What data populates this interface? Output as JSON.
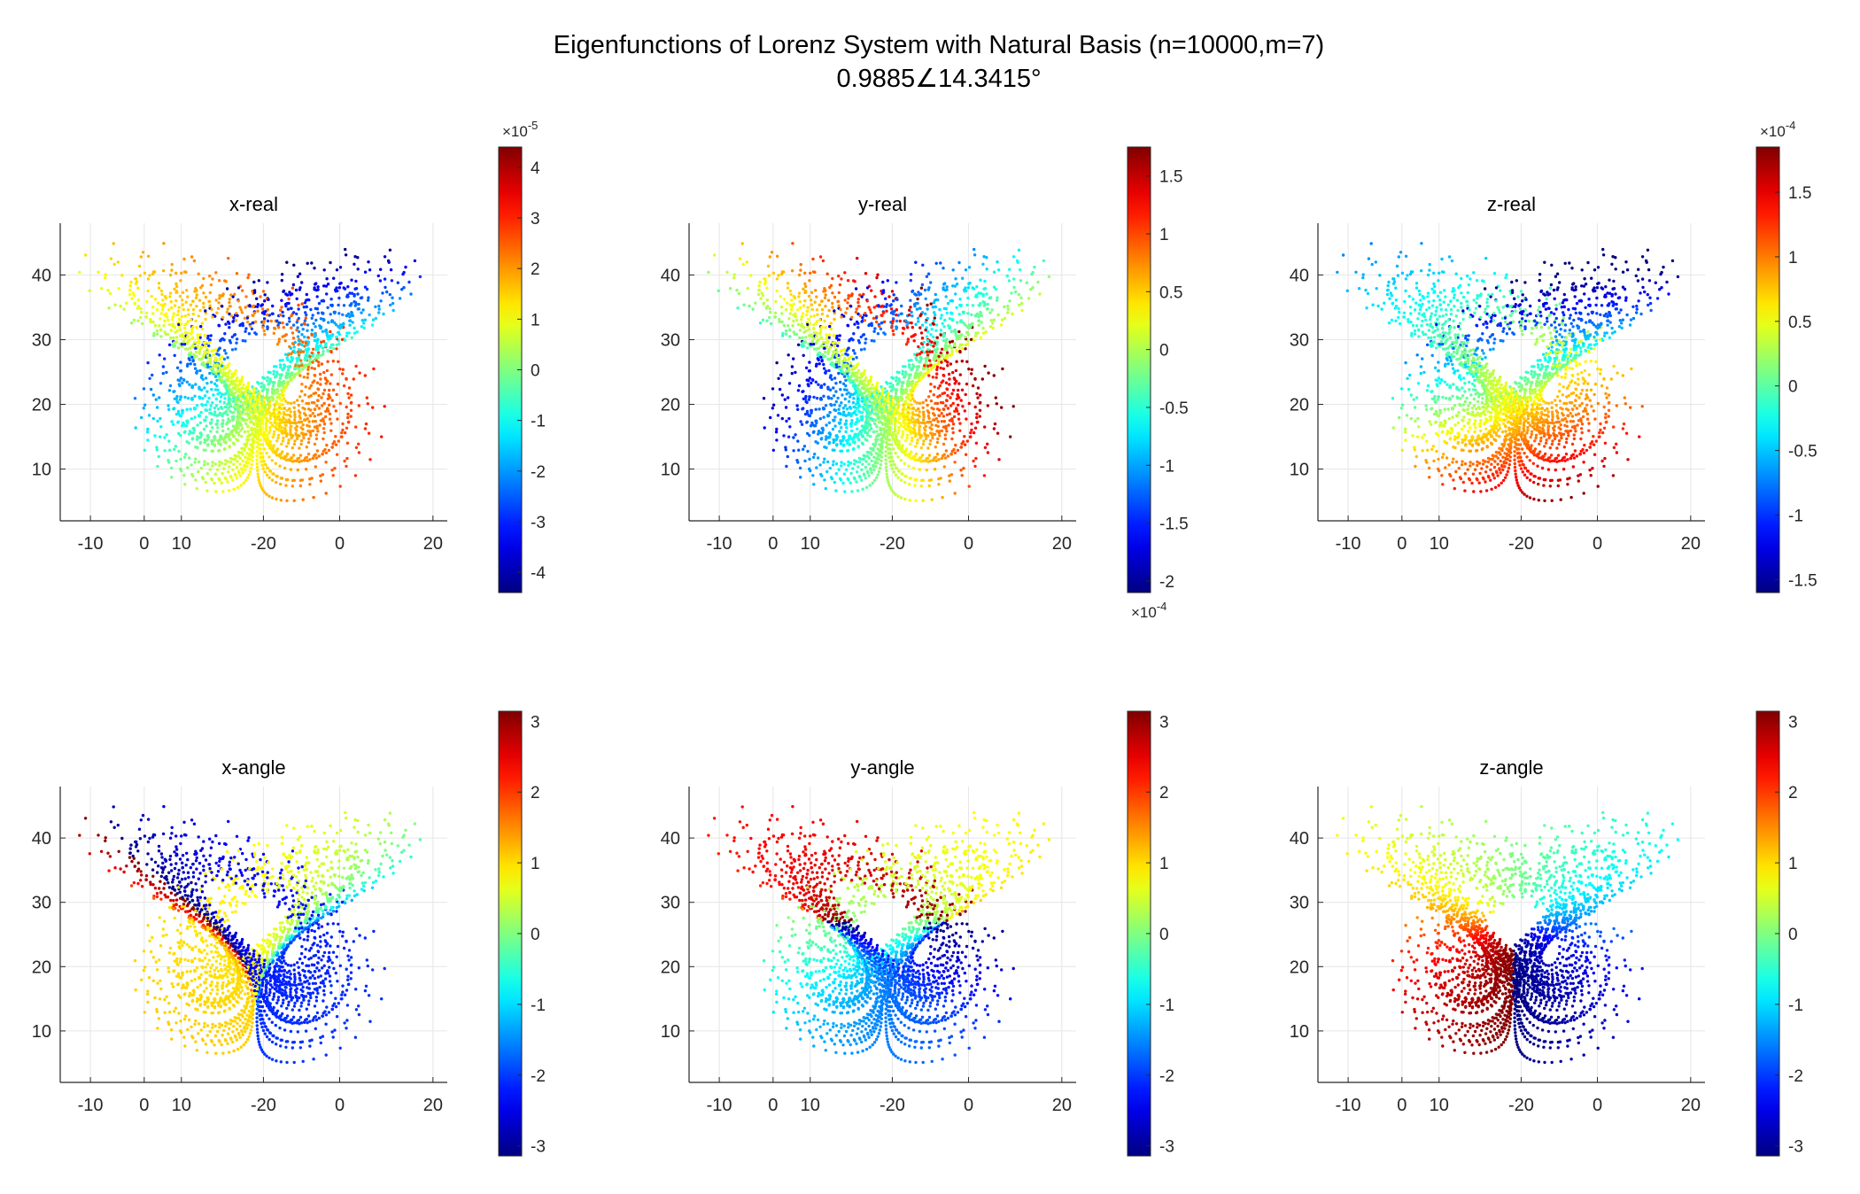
{
  "figure": {
    "title_line1": "Eigenfunctions of Lorenz System with Natural Basis (n=10000,m=7)",
    "title_line2": "0.9885∠14.3415°"
  },
  "chart_data": [
    {
      "type": "scatter",
      "title": "x-real",
      "colormap": "jet",
      "x_tick_labels": [
        "-10",
        "0",
        "10",
        "-20",
        "0",
        "20"
      ],
      "ylim": [
        2,
        48
      ],
      "yticks": [
        10,
        20,
        30,
        40
      ],
      "grid": true,
      "colorbar": {
        "cmin": -4.4,
        "cmax": 4.4,
        "ticks": [
          -4,
          -3,
          -2,
          -1,
          0,
          1,
          2,
          3,
          4
        ],
        "exponent": "×10",
        "exponent_power": "-5",
        "exponent_position": "top"
      },
      "color_field": "x-real",
      "point_count": 10000
    },
    {
      "type": "scatter",
      "title": "y-real",
      "colormap": "jet",
      "x_tick_labels": [
        "-10",
        "0",
        "10",
        "-20",
        "0",
        "20"
      ],
      "ylim": [
        2,
        48
      ],
      "yticks": [
        10,
        20,
        30,
        40
      ],
      "grid": true,
      "colorbar": {
        "cmin": -2.1,
        "cmax": 1.75,
        "ticks": [
          -2,
          -1.5,
          -1,
          -0.5,
          0,
          0.5,
          1,
          1.5
        ],
        "exponent": "×10",
        "exponent_power": "-4",
        "exponent_position": "bottom"
      },
      "color_field": "y-real",
      "point_count": 10000
    },
    {
      "type": "scatter",
      "title": "z-real",
      "colormap": "jet",
      "x_tick_labels": [
        "-10",
        "0",
        "10",
        "-20",
        "0",
        "20"
      ],
      "ylim": [
        2,
        48
      ],
      "yticks": [
        10,
        20,
        30,
        40
      ],
      "grid": true,
      "colorbar": {
        "cmin": -1.6,
        "cmax": 1.85,
        "ticks": [
          -1.5,
          -1,
          -0.5,
          0,
          0.5,
          1,
          1.5
        ],
        "exponent": "×10",
        "exponent_power": "-4",
        "exponent_position": "top"
      },
      "color_field": "z-real",
      "point_count": 10000
    },
    {
      "type": "scatter",
      "title": "x-angle",
      "colormap": "jet",
      "x_tick_labels": [
        "-10",
        "0",
        "10",
        "-20",
        "0",
        "20"
      ],
      "ylim": [
        2,
        48
      ],
      "yticks": [
        10,
        20,
        30,
        40
      ],
      "grid": true,
      "colorbar": {
        "cmin": -3.1416,
        "cmax": 3.1416,
        "ticks": [
          -3,
          -2,
          -1,
          0,
          1,
          2,
          3
        ]
      },
      "color_field": "x-angle",
      "point_count": 10000
    },
    {
      "type": "scatter",
      "title": "y-angle",
      "colormap": "jet",
      "x_tick_labels": [
        "-10",
        "0",
        "10",
        "-20",
        "0",
        "20"
      ],
      "ylim": [
        2,
        48
      ],
      "yticks": [
        10,
        20,
        30,
        40
      ],
      "grid": true,
      "colorbar": {
        "cmin": -3.1416,
        "cmax": 3.1416,
        "ticks": [
          -3,
          -2,
          -1,
          0,
          1,
          2,
          3
        ]
      },
      "color_field": "y-angle",
      "point_count": 10000
    },
    {
      "type": "scatter",
      "title": "z-angle",
      "colormap": "jet",
      "x_tick_labels": [
        "-10",
        "0",
        "10",
        "-20",
        "0",
        "20"
      ],
      "ylim": [
        2,
        48
      ],
      "yticks": [
        10,
        20,
        30,
        40
      ],
      "grid": true,
      "colorbar": {
        "cmin": -3.1416,
        "cmax": 3.1416,
        "ticks": [
          -3,
          -2,
          -1,
          0,
          1,
          2,
          3
        ]
      },
      "color_field": "z-angle",
      "point_count": 10000
    }
  ]
}
